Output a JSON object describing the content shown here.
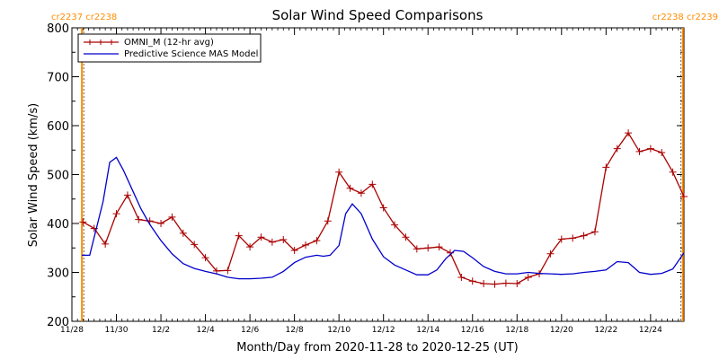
{
  "chart_data": {
    "type": "line",
    "title": "Solar Wind Speed Comparisons",
    "xlabel": "Month/Day from 2020-11-28 to 2020-12-25 (UT)",
    "ylabel": "Solar Wind Speed (km/s)",
    "xlim": [
      0,
      27.5
    ],
    "ylim": [
      200,
      800
    ],
    "yticks": [
      200,
      300,
      400,
      500,
      600,
      700,
      800
    ],
    "xticks": [
      {
        "x": 0,
        "label": "11/28"
      },
      {
        "x": 2,
        "label": "11/30"
      },
      {
        "x": 4,
        "label": "12/2"
      },
      {
        "x": 6,
        "label": "12/4"
      },
      {
        "x": 8,
        "label": "12/6"
      },
      {
        "x": 10,
        "label": "12/8"
      },
      {
        "x": 12,
        "label": "12/10"
      },
      {
        "x": 14,
        "label": "12/12"
      },
      {
        "x": 16,
        "label": "12/14"
      },
      {
        "x": 18,
        "label": "12/16"
      },
      {
        "x": 20,
        "label": "12/18"
      },
      {
        "x": 22,
        "label": "12/20"
      },
      {
        "x": 24,
        "label": "12/22"
      },
      {
        "x": 26,
        "label": "12/24"
      }
    ],
    "carrington_markers": [
      {
        "x": 0.45,
        "labels": [
          "cr2237",
          "cr2238"
        ],
        "side": "left",
        "color": "#ff8c00"
      },
      {
        "x": 27.45,
        "labels": [
          "cr2238",
          "cr2239"
        ],
        "side": "right",
        "color": "#ff8c00"
      }
    ],
    "legend": {
      "placement": "top-left"
    },
    "series": [
      {
        "name": "OMNI_M (12-hr avg)",
        "color": "#aa0000",
        "markers": "plus",
        "x": [
          0.5,
          1.0,
          1.5,
          2.0,
          2.5,
          3.0,
          3.5,
          4.0,
          4.5,
          5.0,
          5.5,
          6.0,
          6.5,
          7.0,
          7.5,
          8.0,
          8.5,
          9.0,
          9.5,
          10.0,
          10.5,
          11.0,
          11.5,
          12.0,
          12.5,
          13.0,
          13.5,
          14.0,
          14.5,
          15.0,
          15.5,
          16.0,
          16.5,
          17.0,
          17.5,
          18.0,
          18.5,
          19.0,
          19.5,
          20.0,
          20.5,
          21.0,
          21.5,
          22.0,
          22.5,
          23.0,
          23.5,
          24.0,
          24.5,
          25.0,
          25.5,
          26.0,
          26.5,
          27.0,
          27.5
        ],
        "y": [
          403,
          390,
          358,
          420,
          458,
          408,
          405,
          400,
          413,
          380,
          357,
          330,
          303,
          304,
          375,
          352,
          372,
          362,
          367,
          345,
          356,
          365,
          405,
          505,
          472,
          462,
          480,
          432,
          397,
          372,
          348,
          350,
          352,
          340,
          290,
          282,
          277,
          276,
          278,
          277,
          290,
          297,
          338,
          368,
          370,
          375,
          383,
          515,
          553,
          585,
          547,
          553,
          545,
          505,
          455
        ]
      },
      {
        "name": "Predictive Science MAS Model",
        "color": "#0000cc",
        "markers": "none",
        "x": [
          0.45,
          0.8,
          1.4,
          1.7,
          2.0,
          2.3,
          2.7,
          3.1,
          3.5,
          4.0,
          4.5,
          5.0,
          5.5,
          6.0,
          6.5,
          7.0,
          7.5,
          8.0,
          8.5,
          9.0,
          9.5,
          10.0,
          10.5,
          11.0,
          11.3,
          11.6,
          12.0,
          12.3,
          12.6,
          13.0,
          13.5,
          14.0,
          14.5,
          15.0,
          15.5,
          16.0,
          16.4,
          16.8,
          17.2,
          17.6,
          18.0,
          18.5,
          19.0,
          19.5,
          20.0,
          20.5,
          21.0,
          21.5,
          22.0,
          22.5,
          23.0,
          23.5,
          24.0,
          24.5,
          25.0,
          25.5,
          26.0,
          26.5,
          27.0,
          27.5
        ],
        "y": [
          335,
          335,
          445,
          525,
          535,
          510,
          470,
          430,
          398,
          365,
          338,
          318,
          308,
          302,
          297,
          290,
          287,
          287,
          288,
          290,
          302,
          320,
          331,
          335,
          333,
          335,
          355,
          420,
          440,
          420,
          368,
          332,
          315,
          305,
          295,
          295,
          305,
          328,
          345,
          343,
          330,
          312,
          302,
          297,
          297,
          300,
          298,
          297,
          296,
          297,
          300,
          302,
          305,
          322,
          320,
          300,
          296,
          298,
          307,
          340
        ]
      }
    ]
  }
}
